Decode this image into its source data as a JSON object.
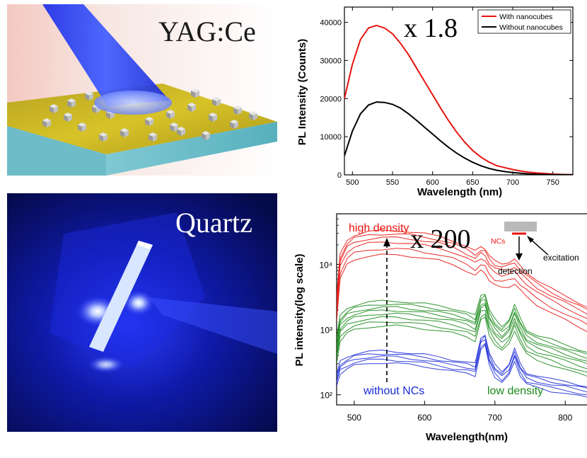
{
  "figure": {
    "panel_a": {
      "label": "YAG:Ce"
    },
    "panel_c": {
      "label": "Quartz"
    },
    "panel_b": {
      "factor": "x 1.8"
    },
    "panel_d": {
      "factor": "x 200",
      "inset": {
        "ncs": "NCs",
        "excitation": "excitation",
        "detection": "detection"
      },
      "annotations": {
        "high": "high density",
        "low": "low density",
        "none": "without NCs"
      }
    },
    "colors": {
      "red": "#e8130f",
      "black": "#000000",
      "green": "#1a8a1a",
      "blue": "#1b2bd6",
      "beam": "#2030ff"
    }
  },
  "chart_data": [
    {
      "type": "line",
      "title": "",
      "xlabel": "Wavelength (nm)",
      "ylabel": "PL Intensity (Counts)",
      "xlim": [
        490,
        775
      ],
      "ylim": [
        0,
        44000
      ],
      "xticks": [
        500,
        550,
        600,
        650,
        700,
        750
      ],
      "yticks": [
        0,
        10000,
        20000,
        30000,
        40000
      ],
      "ytick_labels": [
        "0",
        "10000",
        "20000",
        "30000",
        "40000"
      ],
      "legend": {
        "position": "top-right",
        "entries": [
          "With nanocubes",
          "Without nanocubes"
        ]
      },
      "x": [
        490,
        500,
        510,
        520,
        530,
        540,
        550,
        560,
        570,
        580,
        590,
        600,
        610,
        620,
        630,
        640,
        650,
        660,
        670,
        680,
        690,
        700,
        710,
        720,
        730,
        740,
        750,
        760,
        775
      ],
      "series": [
        {
          "name": "With nanocubes",
          "color": "#e8130f",
          "values": [
            20000,
            29000,
            35500,
            38500,
            39200,
            38500,
            37000,
            34500,
            31500,
            28000,
            24500,
            21000,
            17500,
            14200,
            11200,
            8600,
            6400,
            4700,
            3400,
            2400,
            1900,
            1400,
            1000,
            700,
            500,
            350,
            200,
            120,
            50
          ]
        },
        {
          "name": "Without nanocubes",
          "color": "#000000",
          "values": [
            5000,
            11500,
            16000,
            18300,
            19100,
            19000,
            18500,
            17500,
            16000,
            14300,
            12500,
            10700,
            8900,
            7200,
            5700,
            4400,
            3300,
            2400,
            1700,
            1200,
            850,
            600,
            400,
            260,
            160,
            100,
            60,
            30,
            10
          ]
        }
      ]
    },
    {
      "type": "line",
      "title": "",
      "xlabel": "Wavelength(nm)",
      "ylabel": "PL intensity(log scale)",
      "xscale": "linear",
      "yscale": "log",
      "xlim": [
        475,
        845
      ],
      "ylim": [
        70,
        60000
      ],
      "xticks": [
        500,
        600,
        700,
        800
      ],
      "yticks": [
        100,
        1000,
        10000
      ],
      "ytick_labels": [
        "10²",
        "10³",
        "10⁴"
      ],
      "x": [
        475,
        480,
        490,
        500,
        520,
        540,
        560,
        580,
        600,
        620,
        640,
        660,
        672,
        680,
        686,
        692,
        700,
        710,
        720,
        728,
        736,
        745,
        760,
        780,
        800,
        820,
        845
      ],
      "series": [
        {
          "name": "high density",
          "color": "#e8130f",
          "values": [
            2800,
            12000,
            20000,
            24000,
            27000,
            28000,
            28000,
            27000,
            25000,
            23000,
            20000,
            16000,
            13500,
            16000,
            15000,
            11500,
            9500,
            8800,
            9200,
            10000,
            8000,
            6500,
            4800,
            3600,
            2800,
            2200,
            1600
          ]
        },
        {
          "name": "low density",
          "color": "#1a8a1a",
          "values": [
            600,
            1300,
            1700,
            1900,
            2100,
            2200,
            2200,
            2100,
            2000,
            1850,
            1700,
            1500,
            1300,
            2700,
            2900,
            1600,
            1150,
            900,
            1150,
            1900,
            1200,
            800,
            650,
            560,
            470,
            400,
            330
          ]
        },
        {
          "name": "without NCs",
          "color": "#1b2bd6",
          "values": [
            180,
            280,
            330,
            370,
            400,
            410,
            400,
            380,
            360,
            330,
            300,
            280,
            260,
            650,
            740,
            380,
            250,
            200,
            260,
            440,
            260,
            190,
            170,
            150,
            140,
            125,
            110
          ]
        }
      ]
    }
  ]
}
